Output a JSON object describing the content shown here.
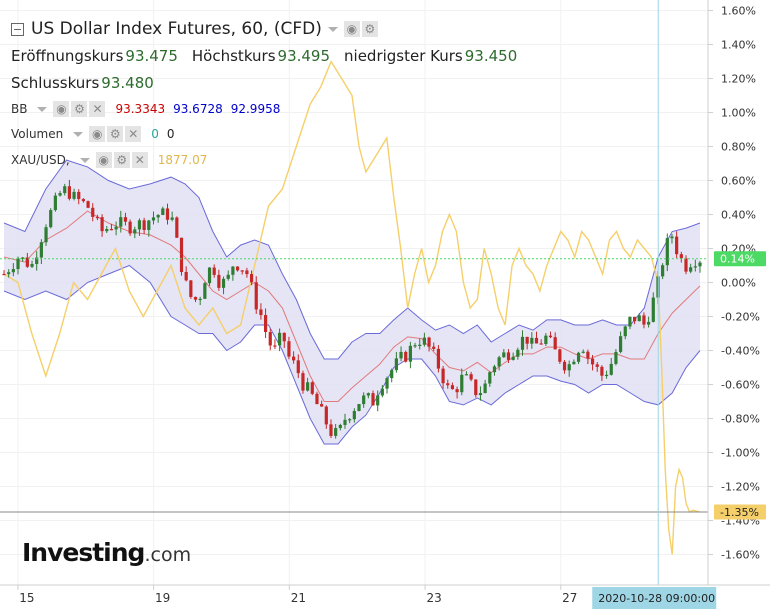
{
  "header": {
    "title": "US Dollar Index Futures, 60, (CFD)",
    "ohlc": [
      {
        "label": "Eröffnungskurs",
        "value": "93.475"
      },
      {
        "label": "Höchstkurs",
        "value": "93.495"
      },
      {
        "label": "niedrigster Kurs",
        "value": "93.450"
      },
      {
        "label": "Schlusskurs",
        "value": "93.480"
      }
    ]
  },
  "indicators": {
    "bb": {
      "name": "BB",
      "values": [
        "93.3343",
        "93.6728",
        "92.9958"
      ]
    },
    "volume": {
      "name": "Volumen",
      "values": [
        "0",
        "0"
      ]
    },
    "xau": {
      "name": "XAU/USD,",
      "value": "1877.07"
    }
  },
  "logo": {
    "main": "Investing",
    "suffix": ".com"
  },
  "colors": {
    "up": "#2e7d32",
    "down": "#c62828",
    "bb_band": "#6a6ad8",
    "bb_fill": "#e1e1f5",
    "bb_mid": "#e27a7a",
    "xau": "#f5cf69",
    "price_line": "#4cd964",
    "crosshair": "#9fd6e6",
    "bb_upper_text": "#0000cc",
    "bb_mid_text": "#cc0000"
  },
  "chart_data": {
    "type": "line",
    "ylim": [
      -1.7,
      1.65
    ],
    "y_ticks": [
      {
        "v": 1.6,
        "label": "1.60%"
      },
      {
        "v": 1.4,
        "label": "1.40%"
      },
      {
        "v": 1.2,
        "label": "1.20%"
      },
      {
        "v": 1.0,
        "label": "1.00%"
      },
      {
        "v": 0.8,
        "label": "0.80%"
      },
      {
        "v": 0.6,
        "label": "0.60%"
      },
      {
        "v": 0.4,
        "label": "0.40%"
      },
      {
        "v": 0.2,
        "label": "0.20%"
      },
      {
        "v": 0.0,
        "label": "0.00%"
      },
      {
        "v": -0.2,
        "label": "-0.20%"
      },
      {
        "v": -0.4,
        "label": "-0.40%"
      },
      {
        "v": -0.6,
        "label": "-0.60%"
      },
      {
        "v": -0.8,
        "label": "-0.80%"
      },
      {
        "v": -1.0,
        "label": "-1.00%"
      },
      {
        "v": -1.2,
        "label": "-1.20%"
      },
      {
        "v": -1.4,
        "label": "-1.40%"
      },
      {
        "v": -1.6,
        "label": "-1.60%"
      }
    ],
    "x_ticks": [
      {
        "x": 0.02,
        "label": "15"
      },
      {
        "x": 0.215,
        "label": "19"
      },
      {
        "x": 0.41,
        "label": "21"
      },
      {
        "x": 0.605,
        "label": "23"
      },
      {
        "x": 0.8,
        "label": "27"
      }
    ],
    "crosshair": {
      "x": 0.94,
      "label": "2020-10-28 09:00:00"
    },
    "price_label": {
      "v": 0.14,
      "label": "0.14%"
    },
    "xau_label": {
      "v": -1.35,
      "label": "-1.35%"
    },
    "xau_line": {
      "name": "XAU/USD",
      "points": [
        [
          0.0,
          0.05
        ],
        [
          0.02,
          0.0
        ],
        [
          0.04,
          -0.3
        ],
        [
          0.06,
          -0.55
        ],
        [
          0.08,
          -0.3
        ],
        [
          0.1,
          0.0
        ],
        [
          0.12,
          -0.1
        ],
        [
          0.14,
          0.05
        ],
        [
          0.16,
          0.2
        ],
        [
          0.18,
          -0.05
        ],
        [
          0.2,
          -0.2
        ],
        [
          0.22,
          -0.05
        ],
        [
          0.24,
          0.1
        ],
        [
          0.26,
          -0.15
        ],
        [
          0.28,
          -0.25
        ],
        [
          0.3,
          -0.15
        ],
        [
          0.32,
          -0.3
        ],
        [
          0.34,
          -0.25
        ],
        [
          0.36,
          0.1
        ],
        [
          0.38,
          0.45
        ],
        [
          0.4,
          0.55
        ],
        [
          0.42,
          0.8
        ],
        [
          0.44,
          1.05
        ],
        [
          0.455,
          1.15
        ],
        [
          0.47,
          1.3
        ],
        [
          0.485,
          1.2
        ],
        [
          0.5,
          1.1
        ],
        [
          0.51,
          0.8
        ],
        [
          0.52,
          0.65
        ],
        [
          0.535,
          0.75
        ],
        [
          0.55,
          0.85
        ],
        [
          0.56,
          0.5
        ],
        [
          0.57,
          0.2
        ],
        [
          0.58,
          -0.15
        ],
        [
          0.59,
          0.05
        ],
        [
          0.6,
          0.2
        ],
        [
          0.61,
          0.0
        ],
        [
          0.62,
          0.1
        ],
        [
          0.63,
          0.3
        ],
        [
          0.64,
          0.4
        ],
        [
          0.65,
          0.3
        ],
        [
          0.66,
          0.0
        ],
        [
          0.67,
          -0.15
        ],
        [
          0.68,
          -0.1
        ],
        [
          0.69,
          0.2
        ],
        [
          0.7,
          0.05
        ],
        [
          0.71,
          -0.15
        ],
        [
          0.72,
          -0.25
        ],
        [
          0.73,
          0.1
        ],
        [
          0.74,
          0.2
        ],
        [
          0.75,
          0.1
        ],
        [
          0.76,
          0.05
        ],
        [
          0.77,
          -0.05
        ],
        [
          0.78,
          0.1
        ],
        [
          0.79,
          0.2
        ],
        [
          0.8,
          0.3
        ],
        [
          0.81,
          0.25
        ],
        [
          0.82,
          0.15
        ],
        [
          0.83,
          0.3
        ],
        [
          0.84,
          0.25
        ],
        [
          0.85,
          0.15
        ],
        [
          0.86,
          0.05
        ],
        [
          0.87,
          0.25
        ],
        [
          0.88,
          0.3
        ],
        [
          0.89,
          0.2
        ],
        [
          0.9,
          0.15
        ],
        [
          0.91,
          0.25
        ],
        [
          0.92,
          0.2
        ],
        [
          0.93,
          0.15
        ],
        [
          0.94,
          0.0
        ],
        [
          0.945,
          -0.5
        ],
        [
          0.95,
          -1.1
        ],
        [
          0.955,
          -1.45
        ],
        [
          0.96,
          -1.6
        ],
        [
          0.965,
          -1.2
        ],
        [
          0.97,
          -1.1
        ],
        [
          0.975,
          -1.15
        ],
        [
          0.98,
          -1.3
        ],
        [
          0.985,
          -1.35
        ],
        [
          0.99,
          -1.34
        ],
        [
          1.0,
          -1.35
        ]
      ]
    },
    "bb_upper": [
      [
        0.0,
        0.35
      ],
      [
        0.03,
        0.3
      ],
      [
        0.06,
        0.55
      ],
      [
        0.09,
        0.72
      ],
      [
        0.12,
        0.68
      ],
      [
        0.15,
        0.6
      ],
      [
        0.18,
        0.55
      ],
      [
        0.21,
        0.58
      ],
      [
        0.24,
        0.62
      ],
      [
        0.26,
        0.58
      ],
      [
        0.28,
        0.5
      ],
      [
        0.3,
        0.3
      ],
      [
        0.32,
        0.15
      ],
      [
        0.34,
        0.22
      ],
      [
        0.36,
        0.25
      ],
      [
        0.38,
        0.22
      ],
      [
        0.4,
        0.05
      ],
      [
        0.42,
        -0.1
      ],
      [
        0.44,
        -0.3
      ],
      [
        0.46,
        -0.45
      ],
      [
        0.48,
        -0.45
      ],
      [
        0.5,
        -0.35
      ],
      [
        0.52,
        -0.3
      ],
      [
        0.54,
        -0.3
      ],
      [
        0.56,
        -0.22
      ],
      [
        0.58,
        -0.15
      ],
      [
        0.6,
        -0.22
      ],
      [
        0.62,
        -0.28
      ],
      [
        0.64,
        -0.25
      ],
      [
        0.66,
        -0.3
      ],
      [
        0.68,
        -0.25
      ],
      [
        0.7,
        -0.35
      ],
      [
        0.72,
        -0.3
      ],
      [
        0.74,
        -0.25
      ],
      [
        0.76,
        -0.28
      ],
      [
        0.78,
        -0.22
      ],
      [
        0.8,
        -0.22
      ],
      [
        0.82,
        -0.25
      ],
      [
        0.84,
        -0.25
      ],
      [
        0.86,
        -0.22
      ],
      [
        0.88,
        -0.25
      ],
      [
        0.9,
        -0.25
      ],
      [
        0.92,
        -0.15
      ],
      [
        0.94,
        0.15
      ],
      [
        0.96,
        0.3
      ],
      [
        0.98,
        0.32
      ],
      [
        1.0,
        0.35
      ]
    ],
    "bb_lower": [
      [
        0.0,
        -0.05
      ],
      [
        0.03,
        -0.1
      ],
      [
        0.06,
        -0.05
      ],
      [
        0.09,
        -0.1
      ],
      [
        0.12,
        0.0
      ],
      [
        0.15,
        0.05
      ],
      [
        0.18,
        0.1
      ],
      [
        0.21,
        0.0
      ],
      [
        0.24,
        -0.2
      ],
      [
        0.26,
        -0.25
      ],
      [
        0.28,
        -0.3
      ],
      [
        0.3,
        -0.3
      ],
      [
        0.32,
        -0.4
      ],
      [
        0.34,
        -0.35
      ],
      [
        0.36,
        -0.25
      ],
      [
        0.38,
        -0.25
      ],
      [
        0.4,
        -0.4
      ],
      [
        0.42,
        -0.6
      ],
      [
        0.44,
        -0.8
      ],
      [
        0.46,
        -0.95
      ],
      [
        0.48,
        -0.95
      ],
      [
        0.5,
        -0.85
      ],
      [
        0.52,
        -0.78
      ],
      [
        0.54,
        -0.65
      ],
      [
        0.56,
        -0.5
      ],
      [
        0.58,
        -0.45
      ],
      [
        0.6,
        -0.45
      ],
      [
        0.62,
        -0.55
      ],
      [
        0.64,
        -0.7
      ],
      [
        0.66,
        -0.72
      ],
      [
        0.68,
        -0.68
      ],
      [
        0.7,
        -0.72
      ],
      [
        0.72,
        -0.65
      ],
      [
        0.74,
        -0.6
      ],
      [
        0.76,
        -0.55
      ],
      [
        0.78,
        -0.55
      ],
      [
        0.8,
        -0.58
      ],
      [
        0.82,
        -0.6
      ],
      [
        0.84,
        -0.65
      ],
      [
        0.86,
        -0.6
      ],
      [
        0.88,
        -0.6
      ],
      [
        0.9,
        -0.65
      ],
      [
        0.92,
        -0.7
      ],
      [
        0.94,
        -0.72
      ],
      [
        0.96,
        -0.65
      ],
      [
        0.98,
        -0.5
      ],
      [
        1.0,
        -0.4
      ]
    ],
    "bb_mid": [
      [
        0.0,
        0.15
      ],
      [
        0.03,
        0.12
      ],
      [
        0.06,
        0.25
      ],
      [
        0.09,
        0.32
      ],
      [
        0.12,
        0.42
      ],
      [
        0.15,
        0.35
      ],
      [
        0.18,
        0.3
      ],
      [
        0.21,
        0.28
      ],
      [
        0.24,
        0.22
      ],
      [
        0.26,
        0.15
      ],
      [
        0.28,
        0.05
      ],
      [
        0.3,
        -0.05
      ],
      [
        0.32,
        -0.1
      ],
      [
        0.34,
        -0.05
      ],
      [
        0.36,
        0.0
      ],
      [
        0.38,
        -0.05
      ],
      [
        0.4,
        -0.15
      ],
      [
        0.42,
        -0.35
      ],
      [
        0.44,
        -0.55
      ],
      [
        0.46,
        -0.7
      ],
      [
        0.48,
        -0.7
      ],
      [
        0.5,
        -0.62
      ],
      [
        0.52,
        -0.55
      ],
      [
        0.54,
        -0.48
      ],
      [
        0.56,
        -0.38
      ],
      [
        0.58,
        -0.32
      ],
      [
        0.6,
        -0.33
      ],
      [
        0.62,
        -0.42
      ],
      [
        0.64,
        -0.5
      ],
      [
        0.66,
        -0.52
      ],
      [
        0.68,
        -0.47
      ],
      [
        0.7,
        -0.53
      ],
      [
        0.72,
        -0.47
      ],
      [
        0.74,
        -0.42
      ],
      [
        0.76,
        -0.42
      ],
      [
        0.78,
        -0.38
      ],
      [
        0.8,
        -0.38
      ],
      [
        0.82,
        -0.42
      ],
      [
        0.84,
        -0.45
      ],
      [
        0.86,
        -0.42
      ],
      [
        0.88,
        -0.42
      ],
      [
        0.9,
        -0.45
      ],
      [
        0.92,
        -0.45
      ],
      [
        0.94,
        -0.3
      ],
      [
        0.96,
        -0.18
      ],
      [
        0.98,
        -0.1
      ],
      [
        1.0,
        -0.02
      ]
    ],
    "candle_path": [
      [
        0.0,
        0.05
      ],
      [
        0.02,
        0.15
      ],
      [
        0.04,
        0.1
      ],
      [
        0.06,
        0.35
      ],
      [
        0.08,
        0.52
      ],
      [
        0.09,
        0.55
      ],
      [
        0.1,
        0.5
      ],
      [
        0.12,
        0.45
      ],
      [
        0.14,
        0.3
      ],
      [
        0.16,
        0.35
      ],
      [
        0.18,
        0.33
      ],
      [
        0.2,
        0.35
      ],
      [
        0.22,
        0.4
      ],
      [
        0.24,
        0.4
      ],
      [
        0.25,
        0.2
      ],
      [
        0.26,
        0.0
      ],
      [
        0.27,
        -0.1
      ],
      [
        0.28,
        -0.1
      ],
      [
        0.29,
        0.05
      ],
      [
        0.3,
        0.1
      ],
      [
        0.31,
        0.0
      ],
      [
        0.32,
        0.0
      ],
      [
        0.33,
        0.12
      ],
      [
        0.34,
        0.1
      ],
      [
        0.35,
        0.05
      ],
      [
        0.36,
        -0.1
      ],
      [
        0.37,
        -0.2
      ],
      [
        0.38,
        -0.35
      ],
      [
        0.39,
        -0.4
      ],
      [
        0.4,
        -0.3
      ],
      [
        0.41,
        -0.45
      ],
      [
        0.42,
        -0.5
      ],
      [
        0.43,
        -0.6
      ],
      [
        0.44,
        -0.65
      ],
      [
        0.45,
        -0.72
      ],
      [
        0.46,
        -0.8
      ],
      [
        0.47,
        -0.88
      ],
      [
        0.48,
        -0.9
      ],
      [
        0.49,
        -0.8
      ],
      [
        0.5,
        -0.75
      ],
      [
        0.51,
        -0.7
      ],
      [
        0.52,
        -0.68
      ],
      [
        0.53,
        -0.7
      ],
      [
        0.54,
        -0.6
      ],
      [
        0.55,
        -0.55
      ],
      [
        0.56,
        -0.5
      ],
      [
        0.57,
        -0.45
      ],
      [
        0.58,
        -0.42
      ],
      [
        0.59,
        -0.35
      ],
      [
        0.6,
        -0.33
      ],
      [
        0.61,
        -0.38
      ],
      [
        0.62,
        -0.45
      ],
      [
        0.63,
        -0.55
      ],
      [
        0.64,
        -0.65
      ],
      [
        0.65,
        -0.62
      ],
      [
        0.66,
        -0.55
      ],
      [
        0.67,
        -0.6
      ],
      [
        0.68,
        -0.65
      ],
      [
        0.69,
        -0.62
      ],
      [
        0.7,
        -0.5
      ],
      [
        0.71,
        -0.45
      ],
      [
        0.72,
        -0.42
      ],
      [
        0.73,
        -0.4
      ],
      [
        0.74,
        -0.35
      ],
      [
        0.75,
        -0.32
      ],
      [
        0.76,
        -0.38
      ],
      [
        0.77,
        -0.35
      ],
      [
        0.78,
        -0.32
      ],
      [
        0.79,
        -0.4
      ],
      [
        0.8,
        -0.45
      ],
      [
        0.81,
        -0.5
      ],
      [
        0.82,
        -0.42
      ],
      [
        0.83,
        -0.35
      ],
      [
        0.84,
        -0.45
      ],
      [
        0.85,
        -0.5
      ],
      [
        0.86,
        -0.55
      ],
      [
        0.87,
        -0.5
      ],
      [
        0.88,
        -0.4
      ],
      [
        0.89,
        -0.3
      ],
      [
        0.9,
        -0.22
      ],
      [
        0.91,
        -0.2
      ],
      [
        0.92,
        -0.25
      ],
      [
        0.93,
        -0.15
      ],
      [
        0.94,
        0.0
      ],
      [
        0.95,
        0.2
      ],
      [
        0.96,
        0.28
      ],
      [
        0.97,
        0.15
      ],
      [
        0.98,
        0.1
      ],
      [
        0.99,
        0.14
      ],
      [
        1.0,
        0.14
      ]
    ],
    "candles": []
  }
}
